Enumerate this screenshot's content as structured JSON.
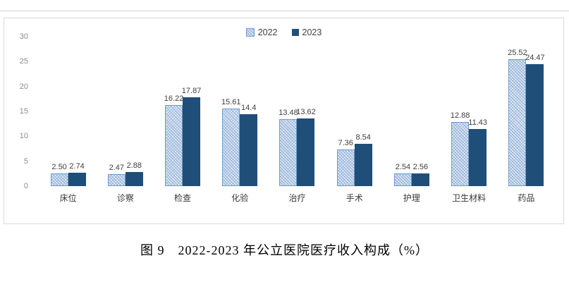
{
  "caption": "图 9　2022-2023 年公立医院医疗收入构成（%）",
  "chart_data": {
    "type": "bar",
    "title": "",
    "categories": [
      "床位",
      "诊察",
      "检查",
      "化验",
      "治疗",
      "手术",
      "护理",
      "卫生材料",
      "药品"
    ],
    "series": [
      {
        "name": "2022",
        "values": [
          2.5,
          2.47,
          16.22,
          15.61,
          13.48,
          7.36,
          2.54,
          12.88,
          25.52
        ],
        "labels": [
          "2.50",
          "2.47",
          "16.22",
          "15.61",
          "13.48",
          "7.36",
          "2.54",
          "12.88",
          "25.52"
        ]
      },
      {
        "name": "2023",
        "values": [
          2.74,
          2.88,
          17.87,
          14.4,
          13.62,
          8.54,
          2.56,
          11.43,
          24.47
        ],
        "labels": [
          "2.74",
          "2.88",
          "17.87",
          "14.4",
          "13.62",
          "8.54",
          "2.56",
          "11.43",
          "24.47"
        ]
      }
    ],
    "ylim": [
      0,
      30
    ],
    "yticks": [
      0,
      5,
      10,
      15,
      20,
      25,
      30
    ],
    "xlabel": "",
    "ylabel": "",
    "grid": false,
    "legend_position": "top-center"
  },
  "colors": {
    "series_2022_fill": "#e3eaf5",
    "series_2022_hatch": "#8cadd6",
    "series_2022_border": "#6d9ad0",
    "series_2023_fill": "#1f4e79",
    "tick_text": "#8c8c8c",
    "data_label_text": "#404040",
    "frame_border": "#d9d9d9"
  }
}
